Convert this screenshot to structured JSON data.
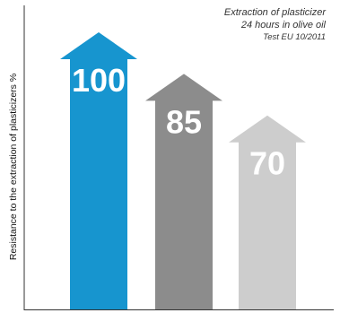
{
  "chart_data": {
    "type": "bar",
    "style": "arrow-bars",
    "categories": [
      "",
      "",
      ""
    ],
    "values": [
      100,
      85,
      70
    ],
    "data_labels": [
      "100",
      "85",
      "70"
    ],
    "annotation": [
      "Extraction of plasticizer",
      "24 hours in olive oil",
      "Test EU 10/2011"
    ],
    "ylabel": "Resistance to the extraction of plasticizers %",
    "ylim": [
      0,
      100
    ],
    "grid": false,
    "legend": "none",
    "colors": [
      "#1795cf",
      "#8c8c8c",
      "#cdcdcd"
    ],
    "label_color": "#ffffff"
  }
}
